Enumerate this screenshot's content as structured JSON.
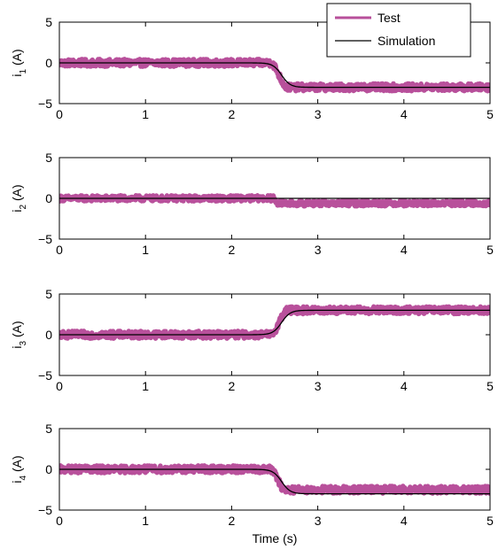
{
  "chart_data": [
    {
      "type": "line",
      "ylabel_base": "i",
      "ylabel_sub": "1",
      "ylabel_unit": "(A)",
      "xlabel": "",
      "xlim": [
        0,
        5
      ],
      "ylim": [
        -5,
        5
      ],
      "xticks": [
        "0",
        "1",
        "2",
        "3",
        "4",
        "5"
      ],
      "yticks": [
        "5",
        "0",
        "-5"
      ],
      "legend": {
        "position": "top-right",
        "entries": [
          "Test",
          "Simulation"
        ]
      },
      "series": [
        {
          "name": "Test",
          "color": "#b8509b",
          "shape": "step",
          "t_start": 2.45,
          "t_end": 2.65,
          "level_before": 0.0,
          "level_after": -3.0,
          "noise_amplitude": 0.45
        },
        {
          "name": "Simulation",
          "color": "#000000",
          "shape": "sigmoid",
          "t_center": 2.58,
          "width": 0.05,
          "level_before": 0.0,
          "level_after": -3.0
        }
      ]
    },
    {
      "type": "line",
      "ylabel_base": "i",
      "ylabel_sub": "2",
      "ylabel_unit": "(A)",
      "xlabel": "",
      "xlim": [
        0,
        5
      ],
      "ylim": [
        -5,
        5
      ],
      "xticks": [
        "0",
        "1",
        "2",
        "3",
        "4",
        "5"
      ],
      "yticks": [
        "5",
        "0",
        "-5"
      ],
      "series": [
        {
          "name": "Test",
          "color": "#b8509b",
          "shape": "step",
          "t_start": 2.48,
          "t_end": 2.55,
          "level_before": 0.0,
          "level_after": -0.6,
          "noise_amplitude": 0.35
        },
        {
          "name": "Simulation",
          "color": "#000000",
          "shape": "flat",
          "level_before": 0.0,
          "level_after": 0.0
        }
      ]
    },
    {
      "type": "line",
      "ylabel_base": "i",
      "ylabel_sub": "3",
      "ylabel_unit": "(A)",
      "xlabel": "",
      "xlim": [
        0,
        5
      ],
      "ylim": [
        -5,
        5
      ],
      "xticks": [
        "0",
        "1",
        "2",
        "3",
        "4",
        "5"
      ],
      "yticks": [
        "5",
        "0",
        "-5"
      ],
      "series": [
        {
          "name": "Test",
          "color": "#b8509b",
          "shape": "step",
          "t_start": 2.45,
          "t_end": 2.65,
          "level_before": 0.0,
          "level_after": 3.0,
          "noise_amplitude": 0.45
        },
        {
          "name": "Simulation",
          "color": "#000000",
          "shape": "sigmoid",
          "t_center": 2.58,
          "width": 0.05,
          "level_before": 0.0,
          "level_after": 3.0
        }
      ]
    },
    {
      "type": "line",
      "ylabel_base": "i",
      "ylabel_sub": "4",
      "ylabel_unit": "(A)",
      "xlabel": "Time (s)",
      "xlim": [
        0,
        5
      ],
      "ylim": [
        -5,
        5
      ],
      "xticks": [
        "0",
        "1",
        "2",
        "3",
        "4",
        "5"
      ],
      "yticks": [
        "5",
        "0",
        "-5"
      ],
      "series": [
        {
          "name": "Test",
          "color": "#b8509b",
          "shape": "step",
          "t_start": 2.45,
          "t_end": 2.62,
          "level_before": 0.0,
          "level_after": -2.5,
          "noise_amplitude": 0.45
        },
        {
          "name": "Simulation",
          "color": "#000000",
          "shape": "sigmoid",
          "t_center": 2.58,
          "width": 0.05,
          "level_before": 0.0,
          "level_after": -3.0
        }
      ]
    }
  ]
}
